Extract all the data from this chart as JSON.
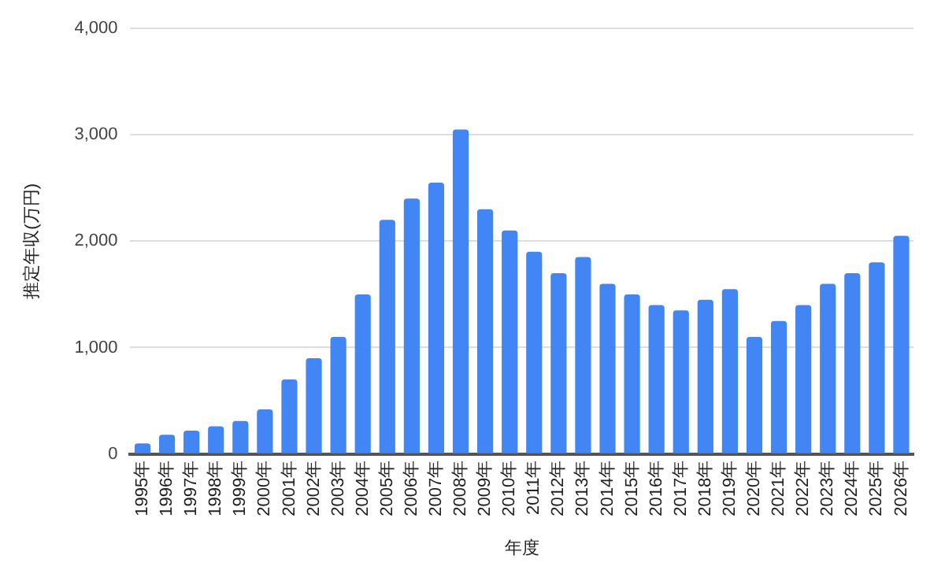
{
  "chart_data": {
    "type": "bar",
    "xlabel": "年度",
    "ylabel": "推定年収(万円)",
    "categories": [
      "1995年",
      "1996年",
      "1997年",
      "1998年",
      "1999年",
      "2000年",
      "2001年",
      "2002年",
      "2003年",
      "2004年",
      "2005年",
      "2006年",
      "2007年",
      "2008年",
      "2009年",
      "2010年",
      "2011年",
      "2012年",
      "2013年",
      "2014年",
      "2015年",
      "2016年",
      "2017年",
      "2018年",
      "2019年",
      "2020年",
      "2021年",
      "2022年",
      "2023年",
      "2024年",
      "2025年",
      "2026年"
    ],
    "values": [
      100,
      180,
      220,
      260,
      310,
      420,
      700,
      900,
      1100,
      1500,
      2200,
      2400,
      2550,
      3050,
      2300,
      2100,
      1900,
      1700,
      1850,
      1600,
      1500,
      1400,
      1350,
      1450,
      1550,
      1100,
      1250,
      1400,
      1600,
      1700,
      1800,
      2050
    ],
    "color": "#4285f4",
    "ylim": [
      0,
      4000
    ],
    "yticks": [
      {
        "value": 0,
        "label": "0"
      },
      {
        "value": 1000,
        "label": "1,000"
      },
      {
        "value": 2000,
        "label": "2,000"
      },
      {
        "value": 3000,
        "label": "3,000"
      },
      {
        "value": 4000,
        "label": "4,000"
      }
    ],
    "grid": "y",
    "legend": false
  }
}
